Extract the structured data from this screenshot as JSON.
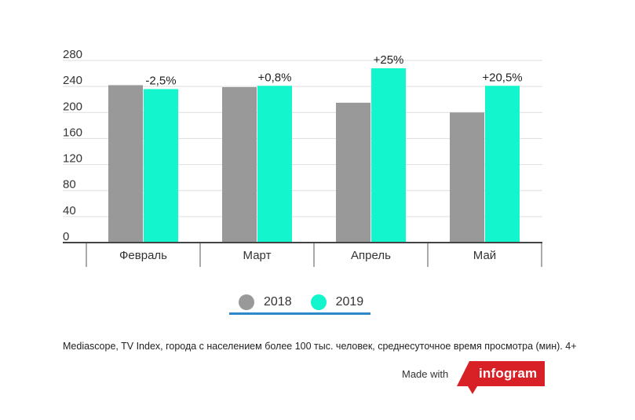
{
  "chart_data": {
    "type": "bar",
    "categories": [
      "Февраль",
      "Март",
      "Апрель",
      "Май"
    ],
    "series": [
      {
        "name": "2018",
        "values": [
          242,
          239,
          215,
          200
        ],
        "color": "#999999"
      },
      {
        "name": "2019",
        "values": [
          236,
          241,
          268,
          241
        ],
        "color": "#12f5cd"
      }
    ],
    "data_labels": [
      "-2,5%",
      "+0,8%",
      "+25%",
      "+20,5%"
    ],
    "yticks": [
      "0",
      "40",
      "80",
      "120",
      "160",
      "200",
      "240",
      "280"
    ],
    "ylim": [
      0,
      280
    ],
    "grid": true,
    "legend": "bottom-center"
  },
  "legend": {
    "items": [
      {
        "label": "2018",
        "color": "#999999"
      },
      {
        "label": "2019",
        "color": "#12f5cd"
      }
    ],
    "underline_color": "#2d87c8"
  },
  "source_text": "Mediascope, TV Index, города с населением более 100 тыс. человек, среднесуточное время просмотра (мин). 4+",
  "footer": {
    "made_with": "Made with",
    "brand": "infogram",
    "brand_color": "#d82027"
  }
}
